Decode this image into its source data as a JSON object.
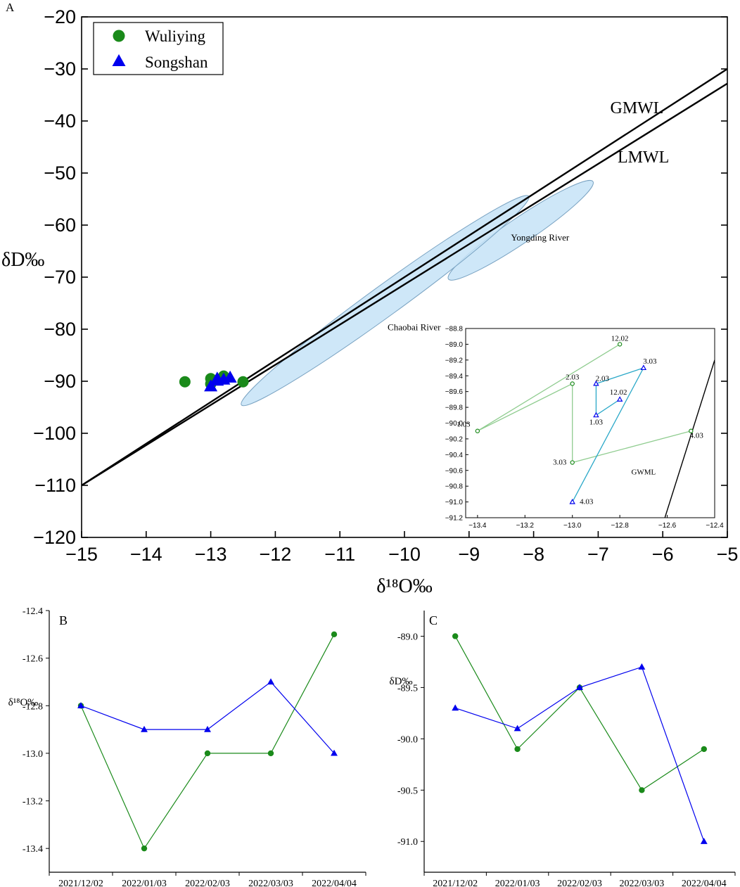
{
  "chart_data": [
    {
      "panel": "A",
      "type": "scatter",
      "xlabel": "δ¹⁸O‰",
      "ylabel": "δD‰",
      "xlim": [
        -15,
        -5
      ],
      "ylim": [
        -120,
        -20
      ],
      "xticks": [
        -15,
        -14,
        -13,
        -12,
        -11,
        -10,
        -9,
        -8,
        -7,
        -6,
        -5
      ],
      "yticks": [
        -20,
        -30,
        -40,
        -50,
        -60,
        -70,
        -80,
        -90,
        -100,
        -110,
        -120
      ],
      "legend": {
        "placement": "top-left",
        "entries": [
          "Wuliying",
          "Songshan"
        ]
      },
      "series": [
        {
          "name": "Wuliying",
          "marker": "circle",
          "color": "#1a8a1a",
          "x": [
            -12.8,
            -13.4,
            -13.0,
            -13.0,
            -12.5
          ],
          "y": [
            -89.0,
            -90.1,
            -89.5,
            -90.5,
            -90.1
          ]
        },
        {
          "name": "Songshan",
          "marker": "triangle",
          "color": "#0000ee",
          "x": [
            -12.8,
            -12.9,
            -12.9,
            -12.7,
            -13.0
          ],
          "y": [
            -89.7,
            -89.9,
            -89.5,
            -89.3,
            -91.0
          ]
        }
      ],
      "lines": [
        {
          "name": "GMWL",
          "x": [
            -15,
            -5
          ],
          "y": [
            -110,
            -30
          ]
        },
        {
          "name": "LMWL",
          "x": [
            -15,
            -5
          ],
          "y": [
            -110,
            -32.8
          ]
        }
      ],
      "regions": [
        {
          "name": "Yongding River",
          "cx": -8.2,
          "cy": -61.0,
          "rx": 1.35,
          "ry": 0.5,
          "angle": -34
        },
        {
          "name": "Chaobai River",
          "cx": -10.3,
          "cy": -74.5,
          "rx": 2.75,
          "ry": 0.6,
          "angle": -36
        }
      ],
      "inset": {
        "xlim": [
          -13.45,
          -12.4
        ],
        "ylim": [
          -91.2,
          -88.8
        ],
        "xticks": [
          -13.4,
          -13.2,
          -13.0,
          -12.8,
          -12.6,
          -12.4
        ],
        "yticks": [
          -88.8,
          -89.0,
          -89.2,
          -89.4,
          -89.6,
          -89.8,
          -90.0,
          -90.2,
          -90.4,
          -90.6,
          -90.8,
          -91.0,
          -91.2
        ],
        "gwml_label": "GWML",
        "gwml": {
          "x": [
            -12.61,
            -12.4
          ],
          "y": [
            -91.2,
            -89.2
          ]
        },
        "series": [
          {
            "name": "Wuliying",
            "x": [
              -12.8,
              -13.4,
              -13.0,
              -13.0,
              -12.5
            ],
            "y": [
              -89.0,
              -90.1,
              -89.5,
              -90.5,
              -90.1
            ],
            "labels": [
              "12.02",
              "1.03",
              "2.03",
              "3.03",
              "4.03"
            ]
          },
          {
            "name": "Songshan",
            "x": [
              -12.8,
              -12.9,
              -12.9,
              -12.7,
              -13.0
            ],
            "y": [
              -89.7,
              -89.9,
              -89.5,
              -89.3,
              -91.0
            ],
            "labels": [
              "12.02",
              "1.03",
              "2.03",
              "3.03",
              "4.03"
            ]
          }
        ]
      }
    },
    {
      "panel": "B",
      "type": "line",
      "ylabel": "δ¹⁸O‰",
      "ylim": [
        -13.5,
        -12.4
      ],
      "yticks": [
        -12.4,
        -12.6,
        -12.8,
        -13.0,
        -13.2,
        -13.4
      ],
      "categories": [
        "2021/12/02",
        "2022/01/03",
        "2022/02/03",
        "2022/03/03",
        "2022/04/04"
      ],
      "series": [
        {
          "name": "Wuliying",
          "values": [
            -12.8,
            -13.4,
            -13.0,
            -13.0,
            -12.5
          ]
        },
        {
          "name": "Songshan",
          "values": [
            -12.8,
            -12.9,
            -12.9,
            -12.7,
            -13.0
          ]
        }
      ]
    },
    {
      "panel": "C",
      "type": "line",
      "ylabel": "δD‰",
      "ylim": [
        -91.3,
        -88.75
      ],
      "yticks": [
        -89.0,
        -89.5,
        -90.0,
        -90.5,
        -91.0
      ],
      "categories": [
        "2021/12/02",
        "2022/01/03",
        "2022/02/03",
        "2022/03/03",
        "2022/04/04"
      ],
      "series": [
        {
          "name": "Wuliying",
          "values": [
            -89.0,
            -90.1,
            -89.5,
            -90.5,
            -90.1
          ]
        },
        {
          "name": "Songshan",
          "values": [
            -89.7,
            -89.9,
            -89.5,
            -89.3,
            -91.0
          ]
        }
      ]
    }
  ],
  "colors": {
    "wuliying": "#1a8a1a",
    "songshan": "#0000ee",
    "region": "#c6e3f7",
    "inset_green": "#8fcc8f",
    "inset_blue": "#2aa8c8"
  }
}
